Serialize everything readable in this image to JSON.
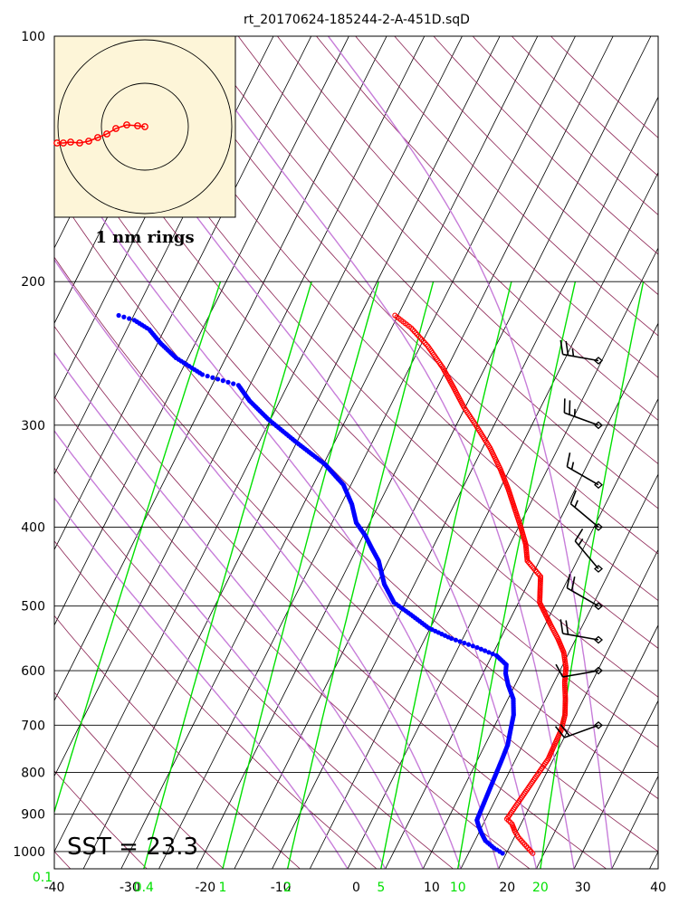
{
  "chart_data": {
    "type": "scatter",
    "title": "rt_20170624-185244-2-A-451D.sqD",
    "y_axis": {
      "scale": "log",
      "range": [
        1050,
        100
      ],
      "ticks": [
        "100",
        "200",
        "300",
        "400",
        "500",
        "600",
        "700",
        "800",
        "900",
        "1000"
      ],
      "tick_values": [
        100,
        200,
        300,
        400,
        500,
        600,
        700,
        800,
        900,
        1000
      ]
    },
    "x_axis": {
      "range": [
        -40,
        40
      ],
      "ticks": [
        "-40",
        "-30",
        "-20",
        "-10",
        "0",
        "10",
        "20",
        "30",
        "40"
      ],
      "tick_values": [
        -40,
        -30,
        -20,
        -10,
        0,
        10,
        20,
        30,
        40
      ]
    },
    "mixing_ratio_labels": [
      "0.1",
      "0.4",
      "1",
      "2",
      "5",
      "10",
      "20"
    ],
    "mixing_ratio_values": [
      0.1,
      0.4,
      1,
      2,
      5,
      10,
      20
    ],
    "annotation": "SST = 23.3",
    "inset_label": "1 nm rings",
    "series": [
      {
        "color": "#ff0000",
        "marker": "open-circle",
        "points": [
          [
            1005,
            23.5
          ],
          [
            990,
            22.5
          ],
          [
            975,
            21.5
          ],
          [
            960,
            20.5
          ],
          [
            945,
            19.7
          ],
          [
            925,
            18.8
          ],
          [
            912,
            17.8
          ],
          [
            770,
            19.3
          ],
          [
            740,
            19.2
          ],
          [
            710,
            19.1
          ],
          [
            680,
            18.6
          ],
          [
            650,
            17.6
          ],
          [
            620,
            16.4
          ],
          [
            595,
            15.6
          ],
          [
            570,
            14.3
          ],
          [
            548,
            12.6
          ],
          [
            528,
            10.8
          ],
          [
            510,
            9.2
          ],
          [
            495,
            7.8
          ],
          [
            460,
            6.2
          ],
          [
            440,
            3.4
          ],
          [
            420,
            2.1
          ],
          [
            400,
            0.3
          ],
          [
            380,
            -1.7
          ],
          [
            360,
            -3.8
          ],
          [
            340,
            -6.2
          ],
          [
            320,
            -9.0
          ],
          [
            300,
            -12.4
          ],
          [
            285,
            -15.2
          ],
          [
            270,
            -17.8
          ],
          [
            255,
            -20.6
          ],
          [
            240,
            -24.0
          ],
          [
            228,
            -27.4
          ],
          [
            220,
            -30.4
          ]
        ]
      },
      {
        "color": "#0000ff",
        "marker": "filled-circle",
        "points": [
          [
            1005,
            19.5
          ],
          [
            990,
            18.0
          ],
          [
            970,
            16.4
          ],
          [
            950,
            15.4
          ],
          [
            930,
            14.5
          ],
          [
            915,
            13.9
          ],
          [
            770,
            13.2
          ],
          [
            740,
            13.0
          ],
          [
            710,
            12.4
          ],
          [
            680,
            11.8
          ],
          [
            650,
            10.7
          ],
          [
            625,
            9.1
          ],
          [
            605,
            8.0
          ],
          [
            590,
            7.5
          ],
          [
            575,
            5.6
          ],
          [
            562,
            2.5
          ],
          [
            548,
            -1.5
          ],
          [
            532,
            -5.2
          ],
          [
            512,
            -8.5
          ],
          [
            495,
            -11.5
          ],
          [
            470,
            -14.0
          ],
          [
            440,
            -16.3
          ],
          [
            425,
            -18.0
          ],
          [
            410,
            -19.7
          ],
          [
            395,
            -21.8
          ],
          [
            375,
            -23.6
          ],
          [
            355,
            -26.0
          ],
          [
            335,
            -29.8
          ],
          [
            315,
            -35.0
          ],
          [
            295,
            -40.3
          ],
          [
            280,
            -44.0
          ],
          [
            268,
            -46.5
          ],
          [
            260,
            -52.0
          ],
          [
            248,
            -56.6
          ],
          [
            238,
            -59.6
          ],
          [
            229,
            -62.0
          ],
          [
            223,
            -64.6
          ],
          [
            220,
            -67.0
          ]
        ]
      }
    ],
    "wind_barbs": [
      {
        "p": 250,
        "dir": 280,
        "spd": 25
      },
      {
        "p": 300,
        "dir": 290,
        "spd": 25
      },
      {
        "p": 355,
        "dir": 300,
        "spd": 15
      },
      {
        "p": 400,
        "dir": 310,
        "spd": 15
      },
      {
        "p": 450,
        "dir": 320,
        "spd": 15
      },
      {
        "p": 500,
        "dir": 300,
        "spd": 20
      },
      {
        "p": 550,
        "dir": 280,
        "spd": 20
      },
      {
        "p": 600,
        "dir": 260,
        "spd": 10
      },
      {
        "p": 700,
        "dir": 250,
        "spd": 20
      }
    ],
    "inset_track": [
      [
        160,
        140
      ],
      [
        152,
        139
      ],
      [
        140,
        138
      ],
      [
        128,
        142
      ],
      [
        118,
        148
      ],
      [
        108,
        152
      ],
      [
        98,
        156
      ],
      [
        88,
        158
      ],
      [
        78,
        157
      ],
      [
        70,
        158
      ],
      [
        63,
        158
      ]
    ]
  }
}
